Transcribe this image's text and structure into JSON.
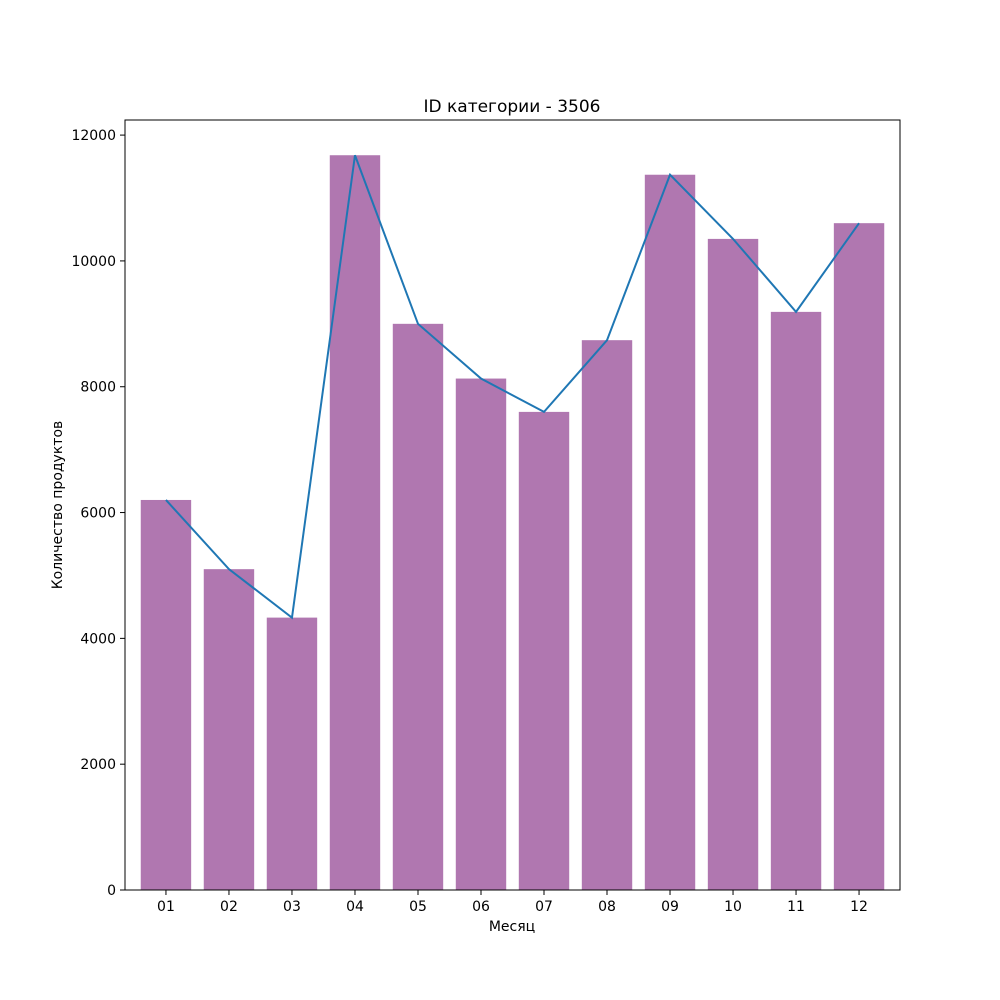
{
  "chart_data": {
    "type": "bar",
    "title": "ID категории - 3506",
    "xlabel": "Месяц",
    "ylabel": "Количество продуктов",
    "categories": [
      "01",
      "02",
      "03",
      "04",
      "05",
      "06",
      "07",
      "08",
      "09",
      "10",
      "11",
      "12"
    ],
    "values": [
      6200,
      5100,
      4330,
      11680,
      9000,
      8130,
      7600,
      8740,
      11370,
      10350,
      9190,
      10600
    ],
    "line_values": [
      6200,
      5100,
      4330,
      11680,
      9000,
      8130,
      7600,
      8740,
      11370,
      10350,
      9190,
      10600
    ],
    "ylim": [
      0,
      12240
    ],
    "yticks": [
      0,
      2000,
      4000,
      6000,
      8000,
      10000,
      12000
    ],
    "grid": false,
    "bar_color": "#b077b0",
    "line_color": "#1f77b4"
  }
}
